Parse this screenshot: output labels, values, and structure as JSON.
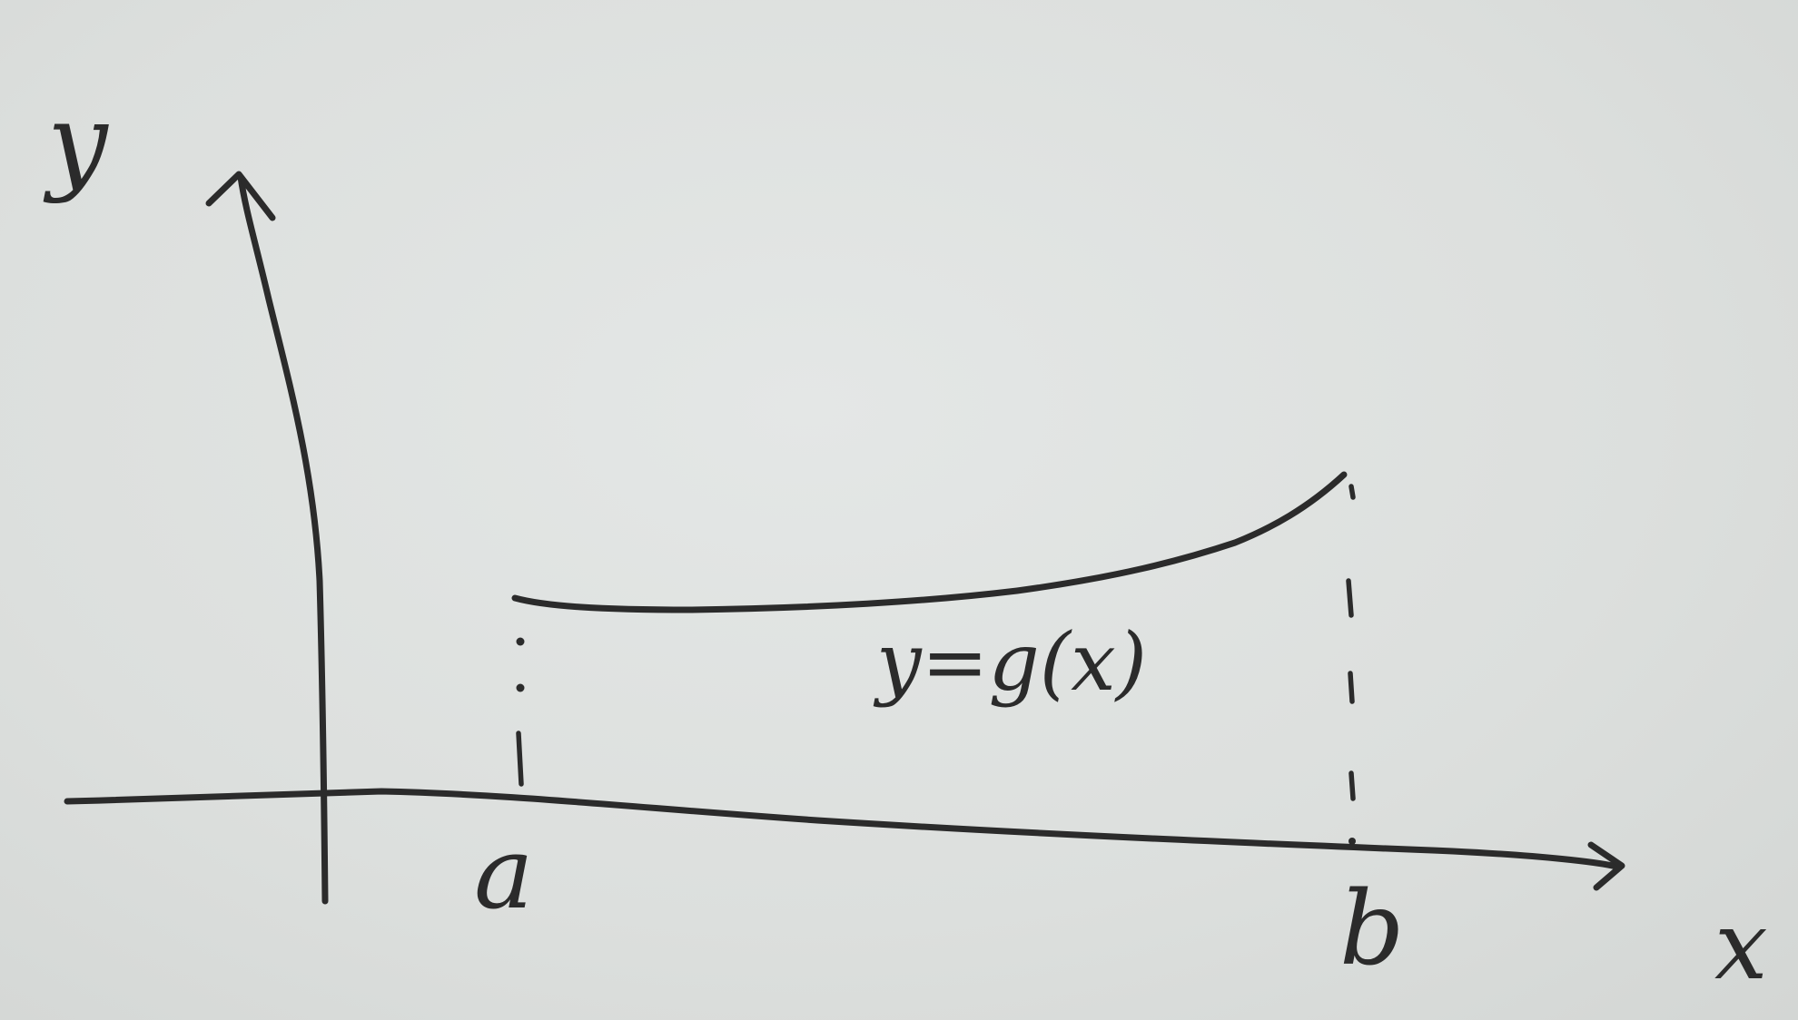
{
  "diagram": {
    "axes": {
      "y_label": "y",
      "x_label": "x"
    },
    "bounds": {
      "left_label": "a",
      "right_label": "b"
    },
    "curve": {
      "label": "y=g(x)"
    },
    "colors": {
      "paper": "#dfe2e1",
      "ink": "#2b2b2b"
    }
  }
}
